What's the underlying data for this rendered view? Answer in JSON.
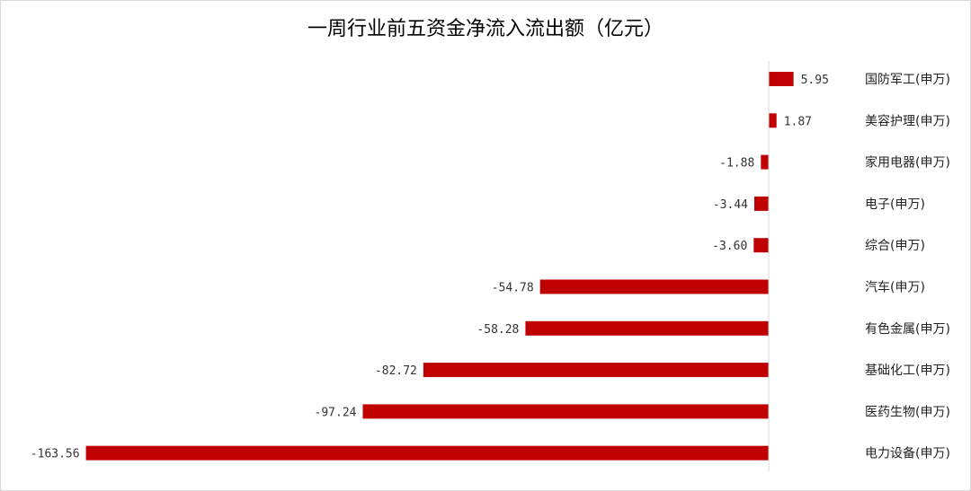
{
  "chart_data": {
    "type": "bar",
    "orientation": "horizontal",
    "title": "一周行业前五资金净流入流出额（亿元）",
    "categories": [
      "国防军工(申万)",
      "美容护理(申万)",
      "家用电器(申万)",
      "电子(申万)",
      "综合(申万)",
      "汽车(申万)",
      "有色金属(申万)",
      "基础化工(申万)",
      "医药生物(申万)",
      "电力设备(申万)"
    ],
    "values": [
      5.95,
      1.87,
      -1.88,
      -3.44,
      -3.6,
      -54.78,
      -58.28,
      -82.72,
      -97.24,
      -163.56
    ],
    "value_labels": [
      "5.95",
      "1.87",
      "-1.88",
      "-3.44",
      "-3.60",
      "-54.78",
      "-58.28",
      "-82.72",
      "-97.24",
      "-163.56"
    ],
    "bar_color": "#c00000",
    "xlim": [
      -170,
      10
    ],
    "grid": false,
    "legend": "none"
  }
}
